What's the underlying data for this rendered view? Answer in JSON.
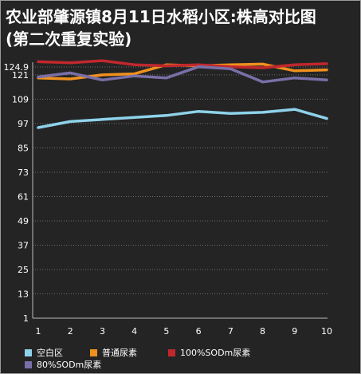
{
  "chart_data": {
    "type": "line",
    "title_line1": "农业部肇源镇8月11日水稻小区:株高对比图",
    "title_line2": "(第二次重复实验)",
    "xlabel": "",
    "ylabel": "",
    "x": [
      1,
      2,
      3,
      4,
      5,
      6,
      7,
      8,
      9,
      10
    ],
    "x_tick_labels": [
      "1",
      "2",
      "3",
      "4",
      "5",
      "6",
      "7",
      "8",
      "9",
      "10"
    ],
    "y_ticks": [
      1,
      13,
      25,
      37,
      49,
      61,
      73,
      85,
      97,
      109,
      121,
      124.9
    ],
    "y_tick_labels": [
      "1",
      "13",
      "25",
      "37",
      "49",
      "61",
      "73",
      "85",
      "97",
      "109",
      "121",
      "124.9"
    ],
    "ylim": [
      1,
      124.9
    ],
    "grid": true,
    "legend_position": "bottom",
    "series": [
      {
        "name": "空白区",
        "color": "#8ed2ea",
        "values": [
          95,
          98,
          99,
          100,
          101,
          103,
          102,
          102.5,
          104,
          99.5
        ]
      },
      {
        "name": "普通尿素",
        "color": "#f0901e",
        "values": [
          119.5,
          119,
          121,
          121.5,
          126,
          125.5,
          126,
          126.3,
          123,
          123.5
        ]
      },
      {
        "name": "100%SODm尿素",
        "color": "#c0282d",
        "values": [
          127.5,
          127,
          128,
          126,
          125.5,
          126,
          125,
          124.5,
          126,
          126.5
        ]
      },
      {
        "name": "80%SODm尿素",
        "color": "#7a6fa8",
        "values": [
          120,
          122,
          118.5,
          120.5,
          119.5,
          125,
          124,
          117.5,
          119.5,
          118.5
        ]
      }
    ]
  }
}
